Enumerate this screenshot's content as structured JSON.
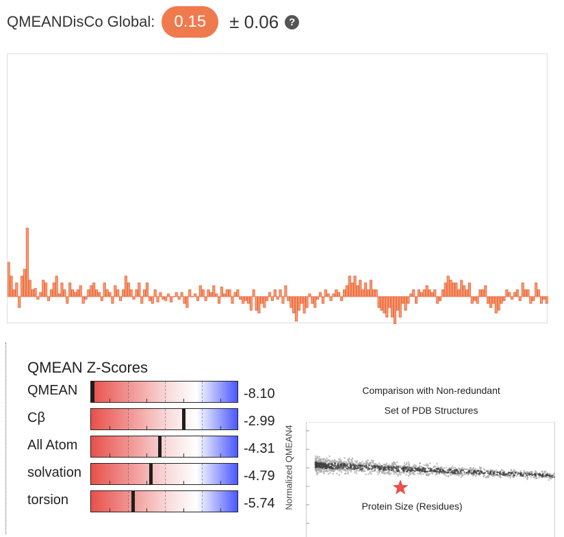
{
  "global": {
    "label": "QMEANDisCo Global:",
    "score": "0.15",
    "uncertainty": "± 0.06",
    "help_icon": "question-circle-icon",
    "badge_color": "#ef7a4d"
  },
  "local_chart": {
    "type": "bar",
    "bar_color": "#f79a6e",
    "bar_stroke": "#e8603a",
    "ylim": [
      -1,
      1
    ],
    "values": [
      0.25,
      0.15,
      0.05,
      0.1,
      -0.08,
      0.15,
      0.2,
      0.5,
      0.12,
      0.05,
      0.06,
      -0.02,
      0.03,
      0.12,
      0.1,
      -0.03,
      0.05,
      0.1,
      0.15,
      0.02,
      0.1,
      0.05,
      -0.05,
      0.1,
      0.05,
      0.03,
      0.05,
      0.08,
      -0.05,
      -0.02,
      0.05,
      0.08,
      0.1,
      0.05,
      0.03,
      -0.03,
      0.1,
      0.05,
      0.03,
      -0.05,
      0.08,
      0.05,
      -0.03,
      0.05,
      0.15,
      0.1,
      0.05,
      -0.02,
      0.05,
      0.1,
      -0.05,
      0.05,
      0.1,
      -0.03,
      -0.05,
      0.05,
      -0.04,
      0.03,
      -0.02,
      -0.03,
      0.02,
      -0.04,
      0.0,
      0.03,
      -0.02,
      0.03,
      -0.05,
      -0.08,
      0.05,
      0.0,
      0.02,
      -0.03,
      0.08,
      0.05,
      -0.03,
      0.05,
      0.03,
      0.08,
      0.02,
      -0.05,
      0.07,
      0.02,
      0.05,
      0.05,
      -0.05,
      0.03,
      0.05,
      -0.02,
      -0.05,
      -0.03,
      -0.05,
      -0.1,
      0.05,
      -0.1,
      -0.12,
      -0.05,
      -0.08,
      -0.03,
      0.03,
      -0.03,
      0.05,
      -0.02,
      0.05,
      -0.05,
      0.08,
      -0.03,
      -0.08,
      -0.12,
      -0.18,
      -0.1,
      -0.05,
      -0.12,
      -0.08,
      0.02,
      -0.05,
      -0.08,
      -0.02,
      0.03,
      -0.05,
      0.05,
      0.02,
      -0.03,
      0.02,
      0.05,
      0.03,
      -0.03,
      0.05,
      0.08,
      0.15,
      0.1,
      0.15,
      0.08,
      0.12,
      0.05,
      0.1,
      0.05,
      0.12,
      0.05,
      0.05,
      -0.08,
      -0.1,
      -0.12,
      -0.15,
      -0.08,
      -0.15,
      -0.2,
      -0.1,
      -0.15,
      -0.05,
      -0.1,
      -0.05,
      0.02,
      0.05,
      -0.05,
      0.05,
      0.03,
      0.05,
      0.08,
      0.05,
      0.03,
      0.05,
      -0.05,
      -0.03,
      0.05,
      0.1,
      0.15,
      0.12,
      0.1,
      0.1,
      0.05,
      0.12,
      0.08,
      0.05,
      0.1,
      -0.05,
      -0.03,
      -0.05,
      0.05,
      0.05,
      0.08,
      -0.05,
      -0.08,
      -0.05,
      -0.12,
      -0.1,
      -0.05,
      -0.03,
      0.05,
      0.03,
      -0.02,
      0.03,
      0.05,
      -0.03,
      0.1,
      0.05,
      0.05,
      -0.05,
      -0.03,
      0.1,
      0.05,
      -0.05,
      -0.02,
      -0.05
    ]
  },
  "zscores": {
    "title": "QMEAN Z-Scores",
    "rows": [
      {
        "label": "QMEAN",
        "value": "-8.10",
        "z": -8.1
      },
      {
        "label": "Cβ",
        "value": "-2.99",
        "z": -2.99
      },
      {
        "label": "All Atom",
        "value": "-4.31",
        "z": -4.31
      },
      {
        "label": "solvation",
        "value": "-4.79",
        "z": -4.79
      },
      {
        "label": "torsion",
        "value": "-5.74",
        "z": -5.74
      }
    ],
    "scale_min": -8,
    "scale_max": 0
  },
  "comparison": {
    "title_line1": "Comparison with Non-redundant",
    "title_line2": "Set of PDB Structures",
    "ylabel": "Normalized QMEAN4",
    "xlabel": "Protein Size (Residues)",
    "star_color": "#e8504b"
  }
}
